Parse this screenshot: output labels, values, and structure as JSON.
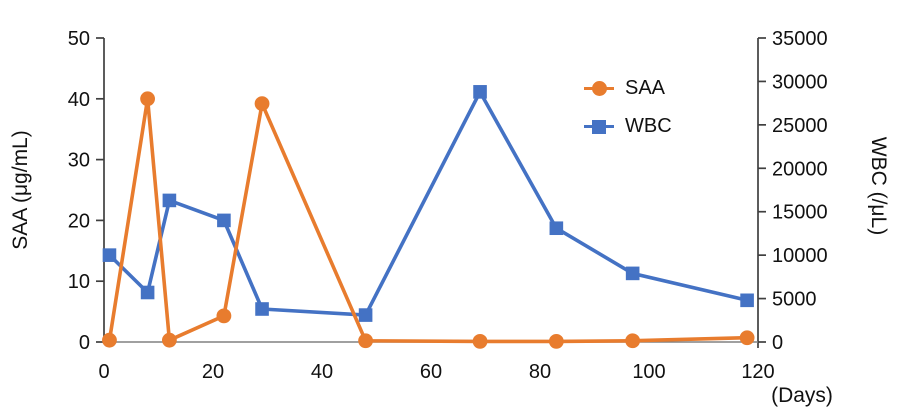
{
  "chart_data": {
    "type": "line",
    "x": [
      1,
      8,
      12,
      22,
      29,
      48,
      69,
      83,
      97,
      118
    ],
    "series": [
      {
        "name": "SAA",
        "axis": "left",
        "color": "#E87C2E",
        "marker": "circle",
        "values": [
          0.3,
          40,
          0.3,
          4.3,
          39.2,
          0.2,
          0.1,
          0.1,
          0.2,
          0.7
        ]
      },
      {
        "name": "WBC",
        "axis": "right",
        "color": "#4472C4",
        "marker": "square",
        "values": [
          10000,
          5700,
          16300,
          14000,
          3800,
          3100,
          28800,
          13100,
          7900,
          4800
        ]
      }
    ],
    "left_axis": {
      "label": "SAA (μg/mL)",
      "min": 0,
      "max": 50,
      "step": 10,
      "ticks": [
        "0",
        "10",
        "20",
        "30",
        "40",
        "50"
      ]
    },
    "right_axis": {
      "label": "WBC (/μL)",
      "min": 0,
      "max": 35000,
      "step": 5000,
      "ticks": [
        "0",
        "5000",
        "10000",
        "15000",
        "20000",
        "25000",
        "30000",
        "35000"
      ]
    },
    "x_axis": {
      "label": "(Days)",
      "min": 0,
      "max": 120,
      "step": 20,
      "ticks": [
        "0",
        "20",
        "40",
        "60",
        "80",
        "100",
        "120"
      ]
    },
    "legend": {
      "position": "inside-top-right",
      "items": [
        "SAA",
        "WBC"
      ]
    },
    "grid": false,
    "colors": {
      "saa": "#E87C2E",
      "wbc": "#4472C4",
      "axis_y": "#3f3f3f",
      "axis_x": "#808080",
      "text": "#111111",
      "background": "#FFFFFF"
    }
  }
}
